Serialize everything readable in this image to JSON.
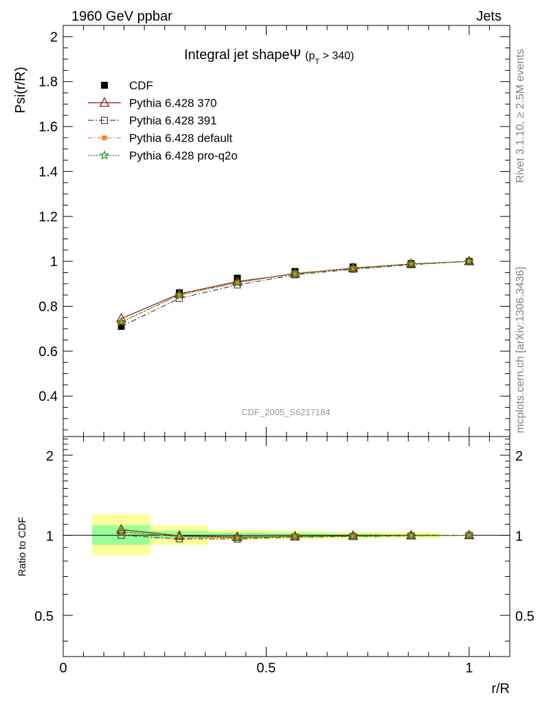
{
  "header": {
    "left": "1960 GeV ppbar",
    "right": "Jets"
  },
  "side_labels": {
    "rivet": "Rivet 3.1.10, ≥ 2.5M events",
    "mcplots": "mcplots.cern.ch [arXiv:1306.3436]"
  },
  "watermark": "CDF_2005_S6217184",
  "colors": {
    "cdf": "#000000",
    "p370": "#8b1a1a",
    "p391": "#5a3a3a",
    "pdefault": "#f08030",
    "pq2o": "#0a8a0a",
    "band_inner": "#99ff99",
    "band_outer": "#ffff99"
  },
  "chart_data": [
    {
      "type": "line",
      "title": "Integral jet shapeΨ",
      "title_suffix": "(p",
      "title_sub": "T",
      "title_tail": " > 340)",
      "ylabel": "Psi(r/R)",
      "xlabel": "r/R",
      "xlim": [
        0,
        1.1
      ],
      "ylim": [
        0.22,
        2.05
      ],
      "yticks": [
        "0.4",
        "0.6",
        "0.8",
        "1",
        "1.2",
        "1.4",
        "1.6",
        "1.8",
        "2"
      ],
      "legend": [
        {
          "label": "CDF",
          "key": "cdf"
        },
        {
          "label": "Pythia 6.428 370",
          "key": "p370"
        },
        {
          "label": "Pythia 6.428 391",
          "key": "p391"
        },
        {
          "label": "Pythia 6.428 default",
          "key": "pdefault"
        },
        {
          "label": "Pythia 6.428 pro-q2o",
          "key": "pq2o"
        }
      ],
      "x": [
        0.143,
        0.286,
        0.429,
        0.571,
        0.714,
        0.857,
        1.0
      ],
      "series": [
        {
          "name": "CDF",
          "values": [
            0.71,
            0.86,
            0.925,
            0.955,
            0.975,
            0.99,
            1.0
          ]
        },
        {
          "name": "Pythia 6.428 370",
          "values": [
            0.745,
            0.855,
            0.91,
            0.945,
            0.97,
            0.988,
            1.0
          ]
        },
        {
          "name": "Pythia 6.428 391",
          "values": [
            0.71,
            0.835,
            0.895,
            0.94,
            0.965,
            0.985,
            1.0
          ]
        },
        {
          "name": "Pythia 6.428 default",
          "values": [
            0.73,
            0.85,
            0.905,
            0.948,
            0.968,
            0.988,
            1.0
          ]
        },
        {
          "name": "Pythia 6.428 pro-q2o",
          "values": [
            0.73,
            0.85,
            0.905,
            0.945,
            0.968,
            0.988,
            1.0
          ]
        }
      ]
    },
    {
      "type": "line",
      "ylabel": "Ratio to CDF",
      "xlabel": "r/R",
      "xlim": [
        0,
        1.1
      ],
      "ylim": [
        0.35,
        2.35
      ],
      "log_scale": true,
      "xticks": [
        "0",
        "0.5",
        "1"
      ],
      "yticks": [
        "0.5",
        "1",
        "2"
      ],
      "bands": [
        {
          "x": [
            0.071,
            0.214
          ],
          "inner": [
            0.92,
            1.09
          ],
          "outer": [
            0.84,
            1.2
          ]
        },
        {
          "x": [
            0.214,
            0.357
          ],
          "inner": [
            0.97,
            1.04
          ],
          "outer": [
            0.92,
            1.09
          ]
        },
        {
          "x": [
            0.357,
            0.5
          ],
          "inner": [
            0.98,
            1.025
          ],
          "outer": [
            0.96,
            1.045
          ]
        },
        {
          "x": [
            0.5,
            0.643
          ],
          "inner": [
            0.98,
            1.02
          ],
          "outer": [
            0.965,
            1.04
          ]
        },
        {
          "x": [
            0.643,
            0.786
          ],
          "inner": [
            0.985,
            1.015
          ],
          "outer": [
            0.97,
            1.03
          ]
        },
        {
          "x": [
            0.786,
            0.929
          ],
          "inner": [
            0.99,
            1.01
          ],
          "outer": [
            0.975,
            1.025
          ]
        },
        {
          "x": [
            0.929,
            1.071
          ],
          "inner": [
            1.0,
            1.0
          ],
          "outer": [
            1.0,
            1.0
          ]
        }
      ],
      "x": [
        0.143,
        0.286,
        0.429,
        0.571,
        0.714,
        0.857,
        1.0
      ],
      "series": [
        {
          "name": "Pythia 6.428 370",
          "values": [
            1.05,
            0.995,
            0.985,
            0.99,
            0.995,
            0.998,
            1.0
          ]
        },
        {
          "name": "Pythia 6.428 391",
          "values": [
            1.0,
            0.97,
            0.968,
            0.985,
            0.99,
            0.995,
            1.0
          ]
        },
        {
          "name": "Pythia 6.428 default",
          "values": [
            1.03,
            0.988,
            0.978,
            0.993,
            0.993,
            0.998,
            1.0
          ]
        },
        {
          "name": "Pythia 6.428 pro-q2o",
          "values": [
            1.03,
            0.988,
            0.978,
            0.99,
            0.993,
            0.998,
            1.0
          ]
        }
      ]
    }
  ]
}
